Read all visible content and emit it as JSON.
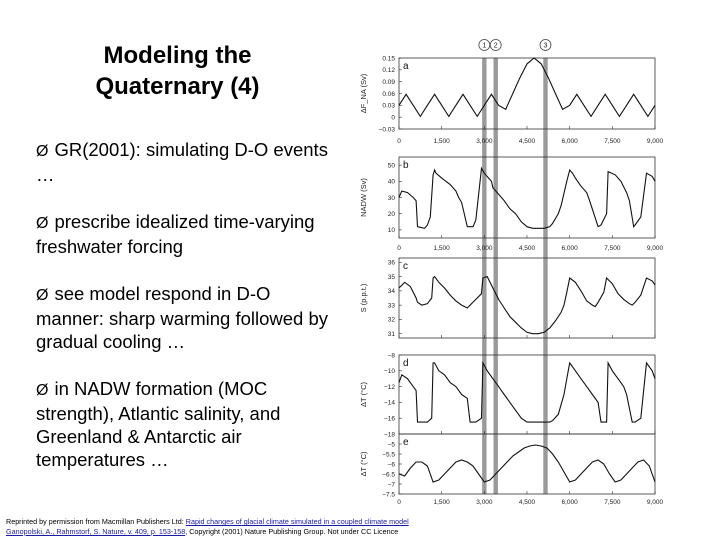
{
  "slide": {
    "title_line1": "Modeling the",
    "title_line2": "Quaternary (4)",
    "bullet_glyph": "Ø",
    "bullets": [
      "GR(2001): simulating D-O events …",
      "prescribe idealized time-varying freshwater forcing",
      "see model respond in D-O manner: sharp warming followed by gradual cooling …",
      "in NADW formation (MOC strength), Atlantic salinity, and Greenland & Antarctic air temperatures …"
    ],
    "credit_prefix": "Reprinted by permission from Macmillan Publishers Ltd: ",
    "credit_link1": "Rapid changes of glacial climate simulated in a coupled climate model",
    "credit_link2": "Ganopolski, A., Rahmstorf, S. Nature, v. 409, p. 153-158",
    "credit_suffix": ", Copyright (2001) Nature Publishing Group. Not under CC Licence"
  },
  "chart_data": [
    {
      "type": "line",
      "panel": "a",
      "ylabel": "ΔF_NA (Sv)",
      "yticks": [
        "0.15",
        "0.12",
        "0.09",
        "0.06",
        "0.03",
        "0",
        "−0.03"
      ],
      "ylim": [
        -0.03,
        0.15
      ],
      "xticks": [
        "0",
        "1,500",
        "3,000",
        "4,500",
        "6,000",
        "7,500",
        "9,000"
      ],
      "xlim": [
        0,
        9000
      ],
      "x": [
        0,
        250,
        500,
        750,
        1000,
        1250,
        1500,
        1750,
        2000,
        2250,
        2500,
        2750,
        3000,
        3250,
        3500,
        3750,
        4000,
        4250,
        4500,
        4750,
        5000,
        5250,
        5500,
        5750,
        6000,
        6250,
        6500,
        6750,
        7000,
        7250,
        7500,
        7750,
        8000,
        8250,
        8500,
        8750,
        9000
      ],
      "y": [
        0.03,
        0.058,
        0.03,
        0.002,
        0.03,
        0.058,
        0.03,
        0.002,
        0.03,
        0.058,
        0.03,
        0.002,
        0.03,
        0.058,
        0.03,
        0.02,
        0.06,
        0.1,
        0.135,
        0.15,
        0.135,
        0.1,
        0.06,
        0.02,
        0.03,
        0.058,
        0.03,
        0.002,
        0.03,
        0.058,
        0.03,
        0.002,
        0.03,
        0.058,
        0.03,
        0.002,
        0.03
      ]
    },
    {
      "type": "line",
      "panel": "b",
      "ylabel": "NADW (Sv)",
      "yticks": [
        "50",
        "40",
        "30",
        "20",
        "10"
      ],
      "ylim": [
        5,
        55
      ],
      "xticks": [
        "0",
        "1,500",
        "3,000",
        "4,500",
        "6,000",
        "7,500",
        "9,000"
      ],
      "xlim": [
        0,
        9000
      ],
      "x": [
        0,
        100,
        300,
        500,
        600,
        650,
        900,
        1000,
        1100,
        1200,
        1250,
        1300,
        1500,
        1800,
        2000,
        2100,
        2200,
        2400,
        2600,
        2700,
        2900,
        3000,
        3250,
        3300,
        3500,
        3700,
        3900,
        4100,
        4300,
        4500,
        4700,
        4900,
        5100,
        5300,
        5400,
        5600,
        5700,
        5900,
        6000,
        6100,
        6200,
        6400,
        6600,
        6700,
        7000,
        7100,
        7300,
        7350,
        7600,
        7800,
        8000,
        8100,
        8250,
        8300,
        8500,
        8700,
        8900,
        9000
      ],
      "y": [
        30,
        34,
        33,
        30,
        28,
        12,
        11,
        13,
        18,
        44,
        47,
        45,
        42,
        38,
        34,
        30,
        27,
        12,
        12,
        16,
        48,
        45,
        40,
        36,
        32,
        28,
        23,
        20,
        15,
        12,
        11,
        11,
        11,
        12,
        14,
        20,
        25,
        40,
        47,
        45,
        42,
        37,
        33,
        28,
        12,
        13,
        20,
        46,
        44,
        40,
        33,
        28,
        12,
        13,
        18,
        45,
        43,
        40
      ]
    },
    {
      "type": "line",
      "panel": "c",
      "ylabel": "S (p.p.t.)",
      "yticks": [
        "36",
        "35",
        "34",
        "33",
        "32",
        "31"
      ],
      "ylim": [
        30.7,
        36.3
      ],
      "xticks": [
        "0",
        "1,500",
        "3,000",
        "4,500",
        "6,000",
        "7,500",
        "9,000"
      ],
      "xlim": [
        0,
        9000
      ],
      "x": [
        0,
        200,
        400,
        600,
        650,
        800,
        1000,
        1150,
        1200,
        1250,
        1400,
        1600,
        1800,
        2000,
        2200,
        2400,
        2500,
        2700,
        2900,
        2950,
        3100,
        3300,
        3500,
        3700,
        3900,
        4100,
        4300,
        4500,
        4700,
        4900,
        5100,
        5300,
        5500,
        5700,
        5800,
        5900,
        6000,
        6200,
        6400,
        6600,
        6800,
        6900,
        7000,
        7200,
        7300,
        7500,
        7700,
        7900,
        8100,
        8200,
        8300,
        8500,
        8700,
        8900,
        9000
      ],
      "y": [
        34.2,
        34.6,
        34.3,
        33.5,
        33.2,
        33.0,
        33.1,
        33.5,
        34.9,
        35.0,
        34.6,
        34.2,
        33.7,
        33.3,
        33.0,
        32.8,
        33.0,
        33.4,
        33.8,
        34.9,
        35.0,
        34.2,
        33.4,
        32.8,
        32.2,
        31.8,
        31.4,
        31.1,
        31.0,
        31.0,
        31.1,
        31.4,
        31.9,
        32.5,
        33.0,
        33.9,
        34.9,
        34.6,
        34.0,
        33.3,
        33.0,
        32.9,
        33.2,
        33.9,
        34.9,
        34.5,
        33.8,
        33.4,
        33.1,
        33.0,
        33.2,
        33.7,
        34.9,
        34.7,
        34.4
      ]
    },
    {
      "type": "line",
      "panel": "d",
      "ylabel": "ΔT (°C)",
      "yticks": [
        "−8",
        "−10",
        "−12",
        "−14",
        "−16",
        "−18"
      ],
      "ylim": [
        -18,
        -8
      ],
      "xticks": [],
      "xlim": [
        0,
        9000
      ],
      "x": [
        0,
        100,
        300,
        500,
        600,
        650,
        800,
        1000,
        1150,
        1200,
        1250,
        1400,
        1600,
        1800,
        2000,
        2200,
        2400,
        2500,
        2700,
        2900,
        2950,
        3100,
        3300,
        3500,
        3700,
        3900,
        4100,
        4300,
        4500,
        4700,
        4900,
        5100,
        5300,
        5400,
        5600,
        5800,
        5900,
        6000,
        6200,
        6400,
        6600,
        6800,
        7000,
        7100,
        7300,
        7350,
        7500,
        7700,
        7900,
        8000,
        8200,
        8300,
        8500,
        8700,
        8900,
        9000
      ],
      "y": [
        -11.5,
        -10.5,
        -11,
        -12,
        -12.5,
        -16.5,
        -16.5,
        -16.5,
        -16,
        -9,
        -9,
        -10,
        -10.5,
        -11.5,
        -12,
        -13,
        -13.5,
        -16.5,
        -16.5,
        -16,
        -9,
        -10,
        -11,
        -12,
        -13,
        -14,
        -15,
        -16,
        -16.5,
        -16.5,
        -16.5,
        -16.5,
        -16.5,
        -16.3,
        -15.5,
        -13,
        -11,
        -9,
        -10,
        -11,
        -12,
        -13,
        -14,
        -16.5,
        -16.5,
        -9,
        -10,
        -11,
        -12,
        -13,
        -16.5,
        -16.5,
        -16,
        -9,
        -10,
        -11
      ]
    },
    {
      "type": "line",
      "panel": "e",
      "ylabel": "ΔT (°C)",
      "yticks": [
        "−5",
        "−5.5",
        "−6",
        "−6.5",
        "−7",
        "−7.5"
      ],
      "ylim": [
        -7.5,
        -4.5
      ],
      "xticks": [
        "0",
        "1,500",
        "3,000",
        "4,500",
        "6,000",
        "7,500",
        "9,000"
      ],
      "xlim": [
        0,
        9000
      ],
      "x": [
        0,
        200,
        400,
        600,
        800,
        1000,
        1200,
        1400,
        1600,
        1800,
        2000,
        2200,
        2400,
        2600,
        2800,
        3000,
        3200,
        3400,
        3600,
        3800,
        4000,
        4200,
        4400,
        4600,
        4800,
        5000,
        5200,
        5400,
        5600,
        5800,
        6000,
        6200,
        6400,
        6600,
        6800,
        7000,
        7200,
        7400,
        7600,
        7800,
        8000,
        8200,
        8400,
        8600,
        8800,
        9000
      ],
      "y": [
        -6.5,
        -6.6,
        -6.2,
        -5.9,
        -5.9,
        -6.1,
        -6.9,
        -6.8,
        -6.5,
        -6.2,
        -5.9,
        -5.8,
        -5.9,
        -6.1,
        -6.5,
        -6.9,
        -6.8,
        -6.5,
        -6.2,
        -5.9,
        -5.6,
        -5.4,
        -5.2,
        -5.1,
        -5.05,
        -5.1,
        -5.2,
        -5.5,
        -5.9,
        -6.4,
        -6.9,
        -6.8,
        -6.5,
        -6.2,
        -5.9,
        -5.8,
        -6.0,
        -6.5,
        -6.9,
        -6.8,
        -6.5,
        -6.2,
        -5.9,
        -5.8,
        -6.1,
        -6.9
      ]
    }
  ],
  "figure": {
    "events": [
      {
        "label": "1",
        "t": 3000
      },
      {
        "label": "2",
        "t": 3400
      },
      {
        "label": "3",
        "t": 5150
      }
    ],
    "colors": {
      "event_bar": "#9a9a9a",
      "line": "#111111",
      "axis": "#333333",
      "link": "#1a1aa8"
    }
  }
}
